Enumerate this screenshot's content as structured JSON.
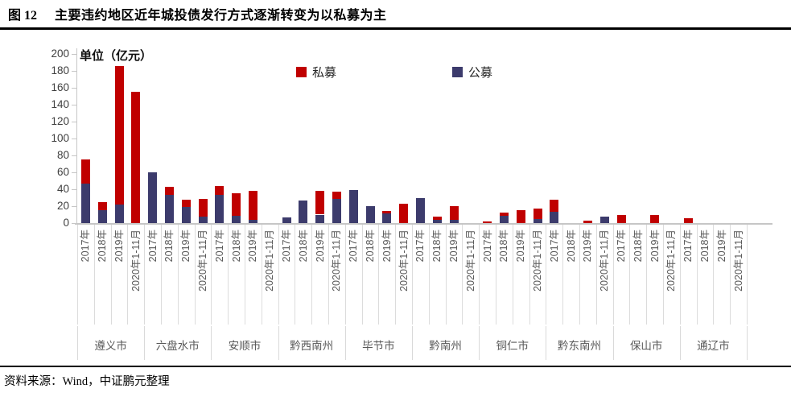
{
  "figure": {
    "label": "图 12",
    "title": "主要违约地区近年城投债发行方式逐渐转变为以私募为主"
  },
  "footer": {
    "source_text": "资料来源：Wind，中证鹏元整理"
  },
  "chart_data": {
    "type": "bar",
    "stacked": true,
    "unit_label": "单位（亿元）",
    "ylim": [
      0,
      200
    ],
    "ytick_interval": 20,
    "yticks": [
      0,
      20,
      40,
      60,
      80,
      100,
      120,
      140,
      160,
      180,
      200
    ],
    "grid": false,
    "legend_position": "top-center",
    "legend": [
      {
        "key": "simu",
        "label": "私募",
        "color": "#C00000"
      },
      {
        "key": "gongmu",
        "label": "公募",
        "color": "#3C3B6C"
      }
    ],
    "stack_order_bottom_to_top": [
      "gongmu",
      "simu"
    ],
    "period_labels": [
      "2017年",
      "2018年",
      "2019年",
      "2020年1-11月"
    ],
    "groups": [
      {
        "city": "遵义市",
        "gongmu": [
          47,
          15,
          22,
          0
        ],
        "simu": [
          28,
          10,
          164,
          155
        ]
      },
      {
        "city": "六盘水市",
        "gongmu": [
          60,
          33,
          19,
          8
        ],
        "simu": [
          0,
          10,
          9,
          21
        ]
      },
      {
        "city": "安顺市",
        "gongmu": [
          33,
          9,
          4,
          0
        ],
        "simu": [
          11,
          26,
          34,
          0
        ]
      },
      {
        "city": "黔西南州",
        "gongmu": [
          7,
          27,
          10,
          29
        ],
        "simu": [
          0,
          0,
          28,
          8
        ]
      },
      {
        "city": "毕节市",
        "gongmu": [
          39,
          20,
          11,
          0
        ],
        "simu": [
          0,
          0,
          3,
          23
        ]
      },
      {
        "city": "黔南州",
        "gongmu": [
          30,
          4,
          4,
          0
        ],
        "simu": [
          0,
          4,
          16,
          0
        ]
      },
      {
        "city": "铜仁市",
        "gongmu": [
          0,
          9,
          0,
          5
        ],
        "simu": [
          2,
          3,
          15,
          12
        ]
      },
      {
        "city": "黔东南州",
        "gongmu": [
          13,
          0,
          0,
          8
        ],
        "simu": [
          15,
          0,
          3,
          0
        ]
      },
      {
        "city": "保山市",
        "gongmu": [
          0,
          0,
          0,
          0
        ],
        "simu": [
          10,
          0,
          10,
          0
        ]
      },
      {
        "city": "通辽市",
        "gongmu": [
          0,
          0,
          0,
          0
        ],
        "simu": [
          6,
          0,
          0,
          0
        ]
      }
    ]
  }
}
